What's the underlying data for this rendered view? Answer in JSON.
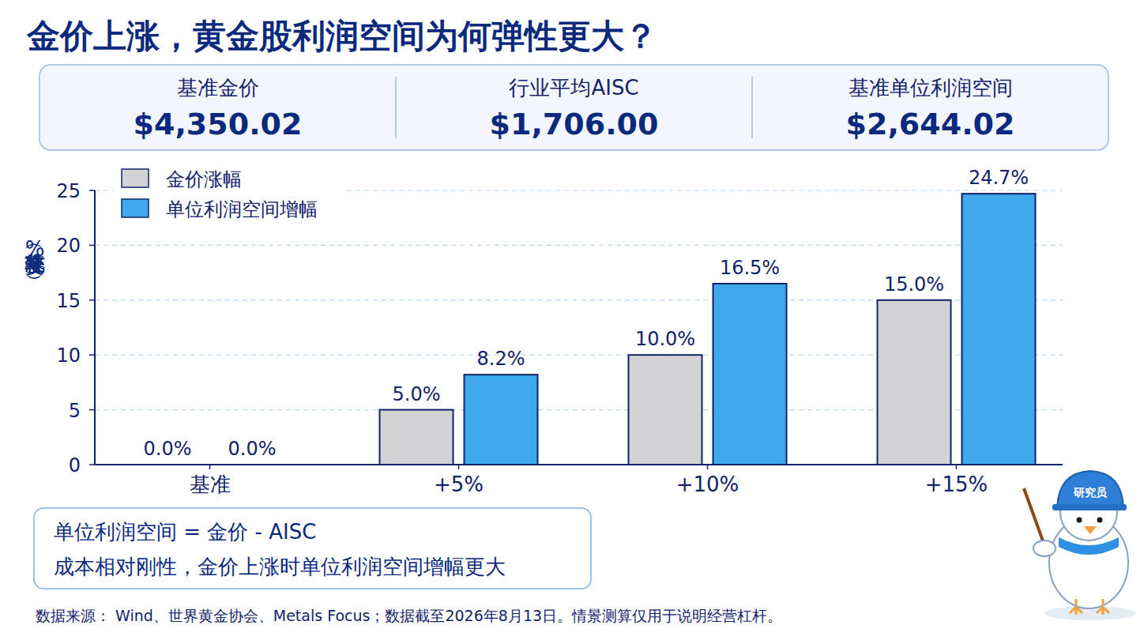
{
  "chart_data": {
    "type": "bar",
    "title": "金价上涨，黄金股利润空间为何弹性更大？",
    "y_label": "较基准变化（%）",
    "categories": [
      "基准",
      "+5%",
      "+10%",
      "+15%"
    ],
    "series": [
      {
        "name": "金价涨幅",
        "color": "#d3d3d6",
        "values": [
          0,
          5,
          10,
          15
        ],
        "value_labels": [
          "0.0%",
          "5.0%",
          "10.0%",
          "15.0%"
        ]
      },
      {
        "name": "单位利润空间增幅",
        "color": "#3fa9ee",
        "values": [
          0,
          8.2,
          16.5,
          24.7
        ],
        "value_labels": [
          "0.0%",
          "8.2%",
          "16.5%",
          "24.7%"
        ]
      }
    ],
    "ylim": [
      0,
      25
    ],
    "yticks": [
      0,
      5,
      10,
      15,
      20,
      25
    ],
    "grid": true,
    "legend": "upper left",
    "data_labels": true
  },
  "summary_cards": [
    {
      "label": "基准金价",
      "value": "$4,350.02"
    },
    {
      "label": "行业平均AISC",
      "value": "$1,706.00"
    },
    {
      "label": "基准单位利润空间",
      "value": "$2,644.02"
    }
  ],
  "formula_box": [
    "单位利润空间 = 金价 - AISC",
    "成本相对刚性，金价上涨时单位利润空间增幅更大"
  ],
  "footnote": "数据来源： Wind、世界黄金协会、Metals Focus；数据截至2026年8月13日。情景测算仅用于说明经营杠杆。",
  "mascot_badge": "研究员"
}
